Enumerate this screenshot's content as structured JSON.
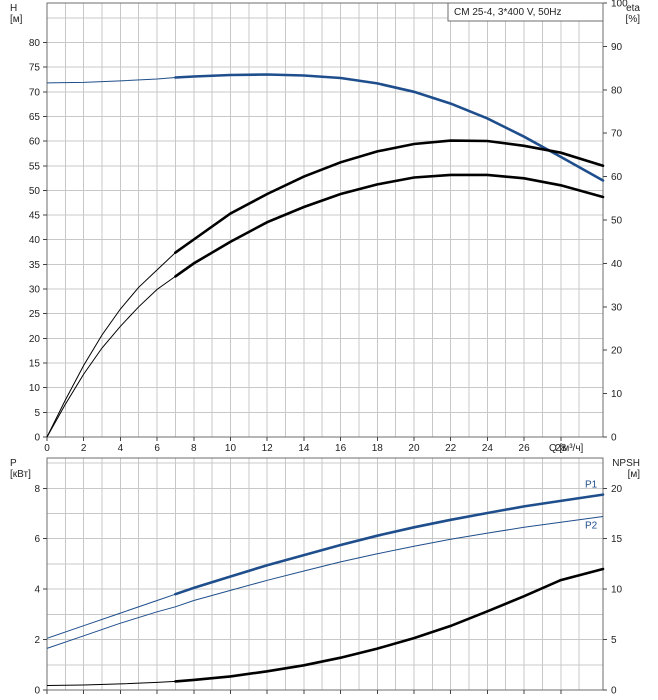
{
  "chart_data": [
    {
      "type": "line",
      "title": "CM 25-4, 3*400 V, 50Hz",
      "ylabel": "H\n[м]",
      "y2label": "eta\n[%]",
      "xlabel": "Q [м³/ч]",
      "xlim": [
        0,
        30.3
      ],
      "ylim": [
        0,
        88
      ],
      "y2lim": [
        0,
        100
      ],
      "xticks": [
        0,
        2,
        4,
        6,
        8,
        10,
        12,
        14,
        16,
        18,
        20,
        22,
        24,
        26,
        28
      ],
      "yticks": [
        0,
        5,
        10,
        15,
        20,
        25,
        30,
        35,
        40,
        45,
        50,
        55,
        60,
        65,
        70,
        75,
        80
      ],
      "y2ticks": [
        0,
        10,
        20,
        30,
        40,
        50,
        60,
        70,
        80,
        90,
        100
      ],
      "grid": true,
      "series": [
        {
          "name": "",
          "color": "#1f4e8c",
          "x": [
            0,
            2,
            4,
            6,
            7,
            8,
            10,
            12,
            14,
            16,
            18,
            20,
            22,
            24,
            26,
            28,
            30.3
          ],
          "y": [
            71.8,
            71.9,
            72.2,
            72.6,
            72.9,
            73.1,
            73.4,
            73.5,
            73.3,
            72.8,
            71.7,
            70.0,
            67.6,
            64.6,
            60.9,
            56.8,
            52.0
          ],
          "highlight_from": 7
        },
        {
          "name": "",
          "axis": "y2",
          "color": "#000000",
          "x": [
            0,
            1,
            2,
            3,
            4,
            5,
            6,
            7,
            8,
            10,
            12,
            14,
            16,
            18,
            20,
            22,
            24,
            26,
            28,
            30.3
          ],
          "y": [
            0,
            8.5,
            16.5,
            23.5,
            29.5,
            34.5,
            38.5,
            42.5,
            45.5,
            51.5,
            56,
            60,
            63.3,
            65.8,
            67.5,
            68.3,
            68.2,
            67.1,
            65.5,
            62.5
          ],
          "highlight_from": 7
        },
        {
          "name": "",
          "axis": "y2",
          "color": "#000000",
          "x": [
            0,
            1,
            2,
            3,
            4,
            5,
            6,
            7,
            8,
            10,
            12,
            14,
            16,
            18,
            20,
            22,
            24,
            26,
            28,
            30.3
          ],
          "y": [
            0,
            7.5,
            14.5,
            20.5,
            25.5,
            30,
            34,
            37,
            40,
            45,
            49.5,
            53,
            56,
            58.2,
            59.8,
            60.4,
            60.4,
            59.6,
            58.0,
            55.3
          ],
          "highlight_from": 7
        }
      ]
    },
    {
      "type": "line",
      "ylabel": "P\n[кВт]",
      "y2label": "NPSH\n[м]",
      "xlim": [
        0,
        30.3
      ],
      "ylim": [
        0,
        9.2
      ],
      "y2lim": [
        0,
        23
      ],
      "yticks": [
        0,
        2,
        4,
        6,
        8
      ],
      "y2ticks": [
        0,
        5,
        10,
        15,
        20
      ],
      "grid": true,
      "series": [
        {
          "name": "P1",
          "color": "#1f4e8c",
          "x": [
            0,
            2,
            4,
            6,
            7,
            8,
            10,
            12,
            14,
            16,
            18,
            20,
            22,
            24,
            26,
            28,
            30.3
          ],
          "y": [
            2.05,
            2.55,
            3.05,
            3.55,
            3.8,
            4.05,
            4.5,
            4.95,
            5.35,
            5.75,
            6.12,
            6.45,
            6.75,
            7.02,
            7.28,
            7.5,
            7.75
          ],
          "highlight_from": 7
        },
        {
          "name": "P2",
          "color": "#1f4e8c",
          "x": [
            0,
            2,
            4,
            6,
            7,
            8,
            10,
            12,
            14,
            16,
            18,
            20,
            22,
            24,
            26,
            28,
            30.3
          ],
          "y": [
            1.65,
            2.15,
            2.65,
            3.1,
            3.3,
            3.55,
            3.95,
            4.35,
            4.72,
            5.08,
            5.4,
            5.7,
            5.98,
            6.22,
            6.45,
            6.65,
            6.88
          ]
        },
        {
          "name": "",
          "axis": "y2",
          "color": "#000000",
          "x": [
            0,
            2,
            4,
            6,
            7,
            8,
            10,
            12,
            14,
            16,
            18,
            20,
            22,
            24,
            26,
            28,
            30.3
          ],
          "y": [
            0.45,
            0.5,
            0.6,
            0.75,
            0.85,
            1.0,
            1.35,
            1.85,
            2.45,
            3.2,
            4.1,
            5.15,
            6.35,
            7.8,
            9.3,
            10.9,
            12.0
          ],
          "highlight_from": 7
        }
      ]
    }
  ]
}
